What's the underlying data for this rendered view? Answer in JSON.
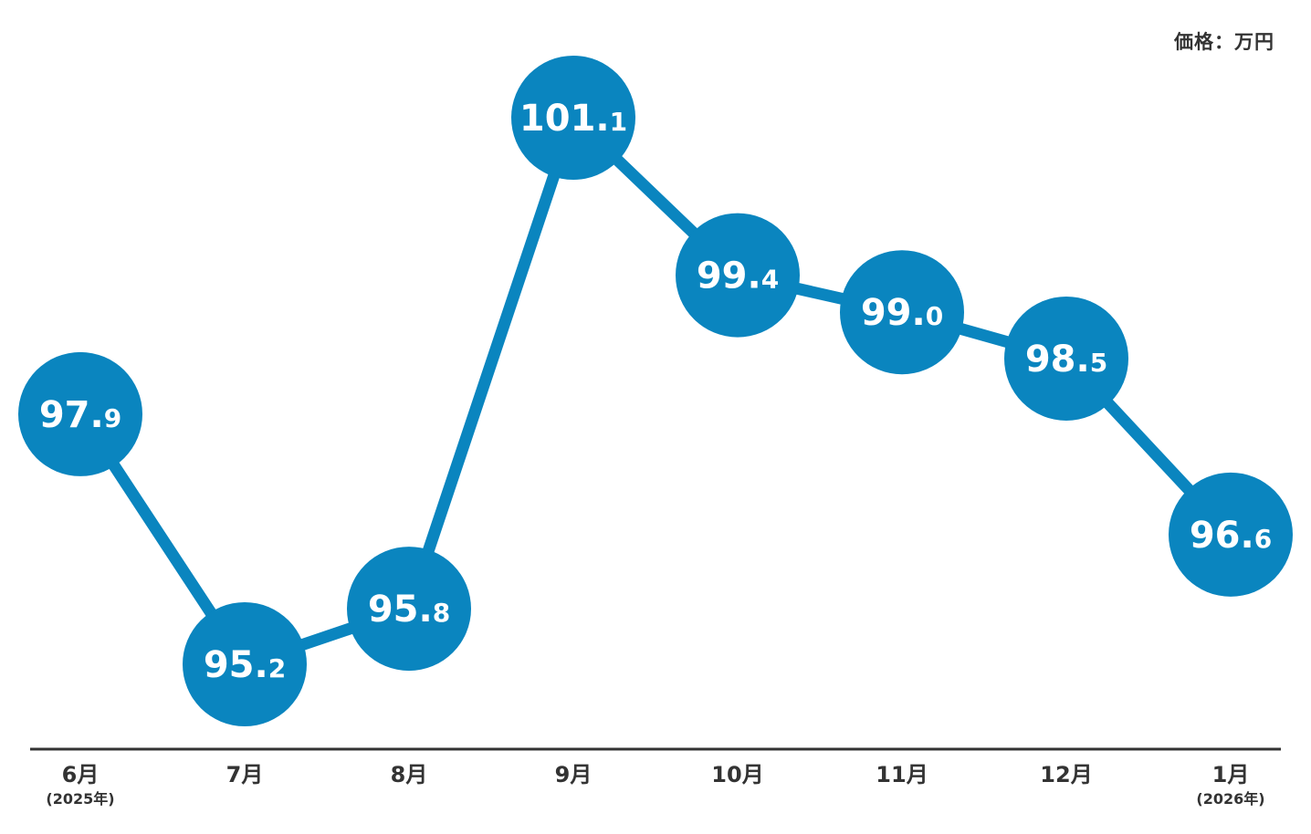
{
  "unit_label": "価格：万円",
  "chart_data": {
    "type": "line",
    "categories": [
      "6月",
      "7月",
      "8月",
      "9月",
      "10月",
      "11月",
      "12月",
      "1月"
    ],
    "category_sublabels": [
      "(2025年)",
      "",
      "",
      "",
      "",
      "",
      "",
      "(2026年)"
    ],
    "values": [
      97.9,
      95.2,
      95.8,
      101.1,
      99.4,
      99.0,
      98.5,
      96.6
    ],
    "value_labels": [
      "97.9",
      "95.2",
      "95.8",
      "101.1",
      "99.4",
      "99.0",
      "98.5",
      "96.6"
    ],
    "title": "",
    "xlabel": "",
    "ylabel": "価格：万円",
    "ylim": [
      94,
      102
    ],
    "grid": false,
    "legend": "none",
    "colors": {
      "series": "#0a85bf",
      "axis": "#333333",
      "text": "#333333",
      "value_text": "#ffffff"
    }
  }
}
